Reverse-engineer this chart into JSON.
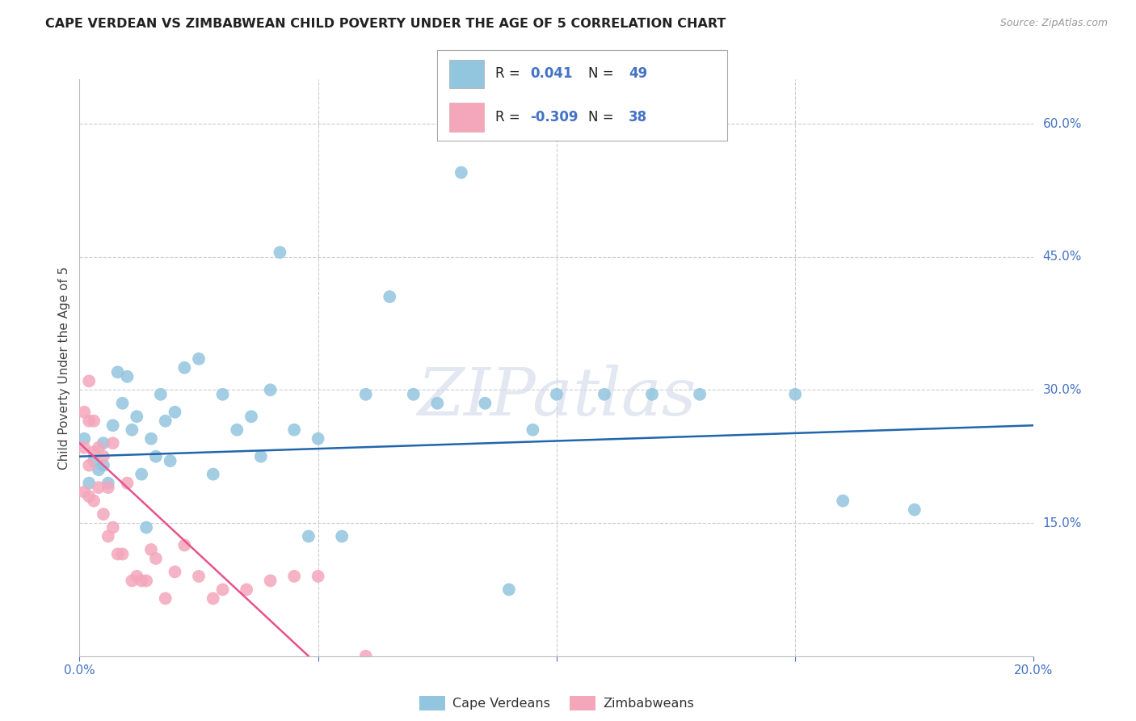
{
  "title": "CAPE VERDEAN VS ZIMBABWEAN CHILD POVERTY UNDER THE AGE OF 5 CORRELATION CHART",
  "source": "Source: ZipAtlas.com",
  "ylabel": "Child Poverty Under the Age of 5",
  "xlim": [
    0.0,
    0.2
  ],
  "ylim": [
    0.0,
    0.65
  ],
  "xtick_positions": [
    0.0,
    0.05,
    0.1,
    0.15,
    0.2
  ],
  "xtick_labels": [
    "0.0%",
    "",
    "",
    "",
    "20.0%"
  ],
  "yticks_right": [
    0.6,
    0.45,
    0.3,
    0.15
  ],
  "ytick_labels_right": [
    "60.0%",
    "45.0%",
    "30.0%",
    "15.0%"
  ],
  "blue_R": "0.041",
  "blue_N": "49",
  "pink_R": "-0.309",
  "pink_N": "38",
  "blue_scatter_x": [
    0.001,
    0.002,
    0.003,
    0.004,
    0.005,
    0.005,
    0.006,
    0.007,
    0.008,
    0.009,
    0.01,
    0.011,
    0.012,
    0.013,
    0.014,
    0.015,
    0.016,
    0.017,
    0.018,
    0.019,
    0.02,
    0.022,
    0.025,
    0.028,
    0.03,
    0.033,
    0.036,
    0.038,
    0.04,
    0.042,
    0.045,
    0.048,
    0.05,
    0.055,
    0.06,
    0.065,
    0.07,
    0.075,
    0.08,
    0.085,
    0.09,
    0.095,
    0.1,
    0.11,
    0.12,
    0.13,
    0.15,
    0.16,
    0.175
  ],
  "blue_scatter_y": [
    0.245,
    0.195,
    0.22,
    0.21,
    0.24,
    0.215,
    0.195,
    0.26,
    0.32,
    0.285,
    0.315,
    0.255,
    0.27,
    0.205,
    0.145,
    0.245,
    0.225,
    0.295,
    0.265,
    0.22,
    0.275,
    0.325,
    0.335,
    0.205,
    0.295,
    0.255,
    0.27,
    0.225,
    0.3,
    0.455,
    0.255,
    0.135,
    0.245,
    0.135,
    0.295,
    0.405,
    0.295,
    0.285,
    0.545,
    0.285,
    0.075,
    0.255,
    0.295,
    0.295,
    0.295,
    0.295,
    0.295,
    0.175,
    0.165
  ],
  "pink_scatter_x": [
    0.001,
    0.001,
    0.001,
    0.002,
    0.002,
    0.002,
    0.002,
    0.003,
    0.003,
    0.003,
    0.004,
    0.004,
    0.005,
    0.005,
    0.006,
    0.006,
    0.007,
    0.007,
    0.008,
    0.009,
    0.01,
    0.011,
    0.012,
    0.013,
    0.014,
    0.015,
    0.016,
    0.018,
    0.02,
    0.022,
    0.025,
    0.028,
    0.03,
    0.035,
    0.04,
    0.045,
    0.05,
    0.06
  ],
  "pink_scatter_y": [
    0.275,
    0.235,
    0.185,
    0.31,
    0.265,
    0.215,
    0.18,
    0.265,
    0.23,
    0.175,
    0.235,
    0.19,
    0.225,
    0.16,
    0.19,
    0.135,
    0.24,
    0.145,
    0.115,
    0.115,
    0.195,
    0.085,
    0.09,
    0.085,
    0.085,
    0.12,
    0.11,
    0.065,
    0.095,
    0.125,
    0.09,
    0.065,
    0.075,
    0.075,
    0.085,
    0.09,
    0.09,
    0.0
  ],
  "blue_line_x": [
    0.0,
    0.2
  ],
  "blue_line_y": [
    0.225,
    0.26
  ],
  "pink_line_x": [
    0.0,
    0.048
  ],
  "pink_line_y": [
    0.24,
    0.0
  ],
  "blue_color": "#92C5DE",
  "pink_color": "#F4A7BB",
  "blue_line_color": "#2166AC",
  "pink_line_color": "#E8528C",
  "legend_label_blue": "Cape Verdeans",
  "legend_label_pink": "Zimbabweans",
  "watermark": "ZIPatlas"
}
